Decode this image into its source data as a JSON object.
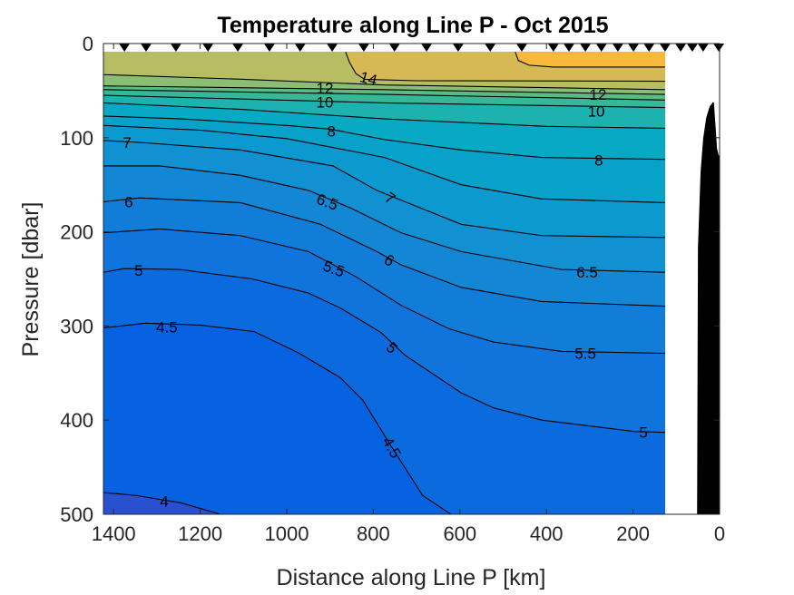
{
  "chart_data": {
    "type": "contour",
    "title": "Temperature along Line P - Oct 2015",
    "xlabel": "Distance along Line P [km]",
    "ylabel": "Pressure [dbar]",
    "xlim": [
      0,
      1423
    ],
    "x_reversed": true,
    "ylim": [
      0,
      500
    ],
    "y_reversed": true,
    "x_ticks": [
      1400,
      1200,
      1000,
      800,
      600,
      400,
      200,
      0
    ],
    "x_tick_labels": [
      "1400",
      "1200",
      "1000",
      "800",
      "600",
      "400",
      "200",
      "0"
    ],
    "y_ticks": [
      0,
      100,
      200,
      300,
      400,
      500
    ],
    "y_tick_labels": [
      "0",
      "100",
      "200",
      "300",
      "400",
      "500"
    ],
    "grid": false,
    "data_extent": {
      "distance": [
        126,
        1423
      ],
      "pressure": [
        8.7,
        500
      ]
    },
    "base_color": "#2a50d2",
    "levels": [
      {
        "level": 4,
        "color": "#0662e0",
        "points": [
          [
            1423,
            477
          ],
          [
            1348,
            480
          ],
          [
            1243,
            488
          ],
          [
            1153,
            500
          ]
        ]
      },
      {
        "level": 4.5,
        "color": "#0a6ade",
        "points": [
          [
            1423,
            302
          ],
          [
            1327,
            297
          ],
          [
            1201,
            299
          ],
          [
            1075,
            306
          ],
          [
            971,
            329
          ],
          [
            876,
            355
          ],
          [
            824,
            379
          ],
          [
            761,
            426
          ],
          [
            686,
            480
          ],
          [
            621,
            500
          ]
        ]
      },
      {
        "level": 5,
        "color": "#0f74db",
        "points": [
          [
            1423,
            243
          ],
          [
            1375,
            239
          ],
          [
            1247,
            240
          ],
          [
            1080,
            250
          ],
          [
            950,
            265
          ],
          [
            876,
            281
          ],
          [
            782,
            307
          ],
          [
            727,
            331
          ],
          [
            597,
            371
          ],
          [
            522,
            387
          ],
          [
            411,
            400
          ],
          [
            197,
            412
          ],
          [
            119,
            413
          ]
        ]
      },
      {
        "level": 5.5,
        "color": "#127dd8",
        "points": [
          [
            1423,
            201
          ],
          [
            1293,
            197
          ],
          [
            1107,
            204
          ],
          [
            950,
            221
          ],
          [
            839,
            248
          ],
          [
            736,
            278
          ],
          [
            625,
            303
          ],
          [
            522,
            317
          ],
          [
            365,
            327
          ],
          [
            119,
            329
          ]
        ]
      },
      {
        "level": 6,
        "color": "#1487d4",
        "points": [
          [
            1423,
            168
          ],
          [
            1340,
            164
          ],
          [
            1107,
            169
          ],
          [
            922,
            192
          ],
          [
            792,
            221
          ],
          [
            736,
            235
          ],
          [
            597,
            259
          ],
          [
            411,
            274
          ],
          [
            119,
            279
          ]
        ]
      },
      {
        "level": 6.5,
        "color": "#1190d2",
        "points": [
          [
            1423,
            130
          ],
          [
            1293,
            130
          ],
          [
            1107,
            140
          ],
          [
            950,
            156
          ],
          [
            851,
            175
          ],
          [
            736,
            201
          ],
          [
            597,
            221
          ],
          [
            365,
            240
          ],
          [
            119,
            243
          ]
        ]
      },
      {
        "level": 7,
        "color": "#0c99cf",
        "points": [
          [
            1423,
            103
          ],
          [
            1340,
            105
          ],
          [
            1107,
            113
          ],
          [
            893,
            130
          ],
          [
            792,
            156
          ],
          [
            727,
            168
          ],
          [
            597,
            192
          ],
          [
            411,
            204
          ],
          [
            119,
            206
          ]
        ]
      },
      {
        "level": 7.5,
        "color": "#07a1ca",
        "points": [
          [
            1423,
            87
          ],
          [
            1200,
            92
          ],
          [
            1000,
            101
          ],
          [
            774,
            121
          ],
          [
            597,
            150
          ],
          [
            411,
            165
          ],
          [
            119,
            169
          ]
        ]
      },
      {
        "level": 8,
        "color": "#08a9c2",
        "points": [
          [
            1423,
            77
          ],
          [
            1243,
            80
          ],
          [
            1000,
            87
          ],
          [
            899,
            91
          ],
          [
            774,
            102
          ],
          [
            597,
            113
          ],
          [
            411,
            121
          ],
          [
            119,
            123
          ]
        ]
      },
      {
        "level": 9,
        "color": "#1db2b0",
        "points": [
          [
            1423,
            63
          ],
          [
            1100,
            70
          ],
          [
            774,
            80
          ],
          [
            400,
            88
          ],
          [
            119,
            90
          ]
        ]
      },
      {
        "level": 10,
        "color": "#36b898",
        "points": [
          [
            1423,
            55
          ],
          [
            774,
            63
          ],
          [
            119,
            68
          ]
        ]
      },
      {
        "level": 11,
        "color": "#5cbb84",
        "points": [
          [
            1423,
            49
          ],
          [
            774,
            54
          ],
          [
            119,
            60
          ]
        ]
      },
      {
        "level": 12,
        "color": "#8bbe72",
        "points": [
          [
            1423,
            45
          ],
          [
            774,
            49
          ],
          [
            119,
            54
          ]
        ]
      },
      {
        "level": 13,
        "color": "#b6bd63",
        "points": [
          [
            1423,
            33
          ],
          [
            1100,
            38
          ],
          [
            774,
            44
          ],
          [
            119,
            49
          ]
        ]
      },
      {
        "level": 14,
        "color": "#d6b954",
        "points": [
          [
            864,
            9
          ],
          [
            855,
            20
          ],
          [
            840,
            32
          ],
          [
            820,
            38
          ],
          [
            700,
            39.5
          ],
          [
            119,
            40
          ]
        ]
      },
      {
        "level": 15,
        "color": "#f7b83c",
        "points": [
          [
            472,
            9
          ],
          [
            465,
            18
          ],
          [
            440,
            23
          ],
          [
            384,
            25
          ],
          [
            119,
            25
          ]
        ]
      }
    ],
    "contour_labels": [
      {
        "text": "14",
        "distance": 811,
        "pressure": 37
      },
      {
        "text": "12",
        "distance": 912,
        "pressure": 47
      },
      {
        "text": "10",
        "distance": 912,
        "pressure": 62
      },
      {
        "text": "12",
        "distance": 281,
        "pressure": 54
      },
      {
        "text": "10",
        "distance": 285,
        "pressure": 72
      },
      {
        "text": "8",
        "distance": 897,
        "pressure": 93
      },
      {
        "text": "8",
        "distance": 279,
        "pressure": 124
      },
      {
        "text": "7",
        "distance": 1369,
        "pressure": 105
      },
      {
        "text": "6.5",
        "distance": 906,
        "pressure": 168
      },
      {
        "text": "7",
        "distance": 761,
        "pressure": 164
      },
      {
        "text": "6",
        "distance": 1365,
        "pressure": 168
      },
      {
        "text": "6",
        "distance": 763,
        "pressure": 230
      },
      {
        "text": "6.5",
        "distance": 306,
        "pressure": 243
      },
      {
        "text": "5.5",
        "distance": 891,
        "pressure": 239
      },
      {
        "text": "5",
        "distance": 1342,
        "pressure": 241
      },
      {
        "text": "4.5",
        "distance": 1277,
        "pressure": 301
      },
      {
        "text": "5",
        "distance": 757,
        "pressure": 323
      },
      {
        "text": "5.5",
        "distance": 310,
        "pressure": 329
      },
      {
        "text": "5",
        "distance": 176,
        "pressure": 413
      },
      {
        "text": "4.5",
        "distance": 757,
        "pressure": 429
      },
      {
        "text": "4",
        "distance": 1283,
        "pressure": 486
      }
    ],
    "stations_km": [
      1375,
      1325,
      1256,
      1182,
      1113,
      1040,
      969,
      895,
      822,
      751,
      677,
      604,
      530,
      457,
      384,
      348,
      310,
      273,
      235,
      199,
      163,
      126,
      90,
      63,
      38,
      2
    ],
    "bathymetry": [
      [
        57,
        500
      ],
      [
        52,
        500
      ],
      [
        50,
        217
      ],
      [
        44,
        137
      ],
      [
        38,
        101
      ],
      [
        31,
        79
      ],
      [
        23,
        67
      ],
      [
        15,
        62
      ],
      [
        13,
        63
      ],
      [
        6,
        111
      ],
      [
        2,
        119
      ],
      [
        0,
        119
      ],
      [
        0,
        500
      ]
    ],
    "bathymetry_color": "#000000"
  }
}
